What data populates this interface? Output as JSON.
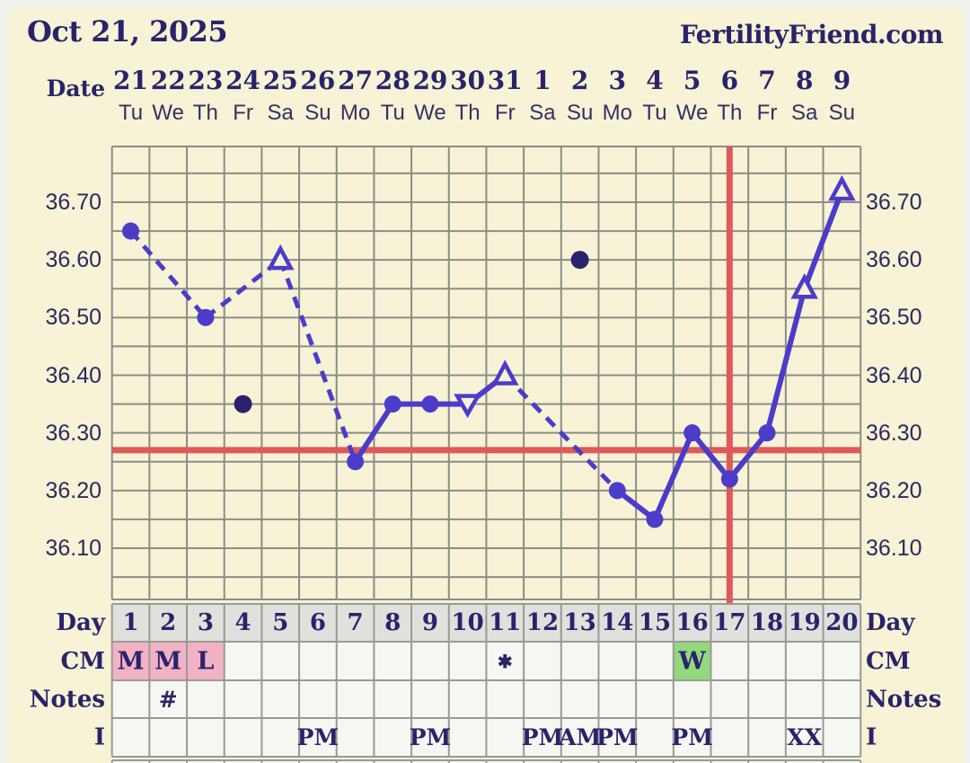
{
  "page": {
    "title_date": "Oct 21, 2025",
    "brand": "FertilityFriend.com"
  },
  "header": {
    "date_label": "Date",
    "dates": [
      "21",
      "22",
      "23",
      "24",
      "25",
      "26",
      "27",
      "28",
      "29",
      "30",
      "31",
      "1",
      "2",
      "3",
      "4",
      "5",
      "6",
      "7",
      "8",
      "9"
    ],
    "weekdays": [
      "Tu",
      "We",
      "Th",
      "Fr",
      "Sa",
      "Su",
      "Mo",
      "Tu",
      "We",
      "Th",
      "Fr",
      "Sa",
      "Su",
      "Mo",
      "Tu",
      "We",
      "Th",
      "Fr",
      "Sa",
      "Su"
    ]
  },
  "chart_data": {
    "type": "line",
    "y_ticks": [
      "36.70",
      "36.60",
      "36.50",
      "36.40",
      "36.30",
      "36.20",
      "36.10"
    ],
    "y_range": [
      36.0,
      36.8
    ],
    "days": 20,
    "points": [
      {
        "day": 1,
        "temp": 36.65,
        "marker": "circle"
      },
      {
        "day": 3,
        "temp": 36.5,
        "marker": "circle"
      },
      {
        "day": 4,
        "temp": 36.35,
        "marker": "discarded-dot"
      },
      {
        "day": 5,
        "temp": 36.6,
        "marker": "triangle-up"
      },
      {
        "day": 7,
        "temp": 36.25,
        "marker": "circle"
      },
      {
        "day": 8,
        "temp": 36.35,
        "marker": "circle"
      },
      {
        "day": 9,
        "temp": 36.35,
        "marker": "circle"
      },
      {
        "day": 10,
        "temp": 36.35,
        "marker": "triangle-down"
      },
      {
        "day": 11,
        "temp": 36.4,
        "marker": "triangle-up"
      },
      {
        "day": 13,
        "temp": 36.6,
        "marker": "discarded-dot"
      },
      {
        "day": 14,
        "temp": 36.2,
        "marker": "circle"
      },
      {
        "day": 15,
        "temp": 36.15,
        "marker": "circle"
      },
      {
        "day": 16,
        "temp": 36.3,
        "marker": "circle"
      },
      {
        "day": 17,
        "temp": 36.22,
        "marker": "circle"
      },
      {
        "day": 18,
        "temp": 36.3,
        "marker": "circle"
      },
      {
        "day": 19,
        "temp": 36.55,
        "marker": "triangle-up"
      },
      {
        "day": 20,
        "temp": 36.72,
        "marker": "triangle-up"
      }
    ],
    "coverline_temp": 36.27,
    "ovulation_line_day": 17,
    "colors": {
      "line": "#4b3cc9",
      "discarded_dot": "#29226d",
      "crosshair_red": "#dd5a5a",
      "grid": "#8c8c86",
      "background": "#f8f2d6"
    }
  },
  "table": {
    "row_labels": [
      "Day",
      "CM",
      "Notes",
      "I"
    ],
    "days": [
      "1",
      "2",
      "3",
      "4",
      "5",
      "6",
      "7",
      "8",
      "9",
      "10",
      "11",
      "12",
      "13",
      "14",
      "15",
      "16",
      "17",
      "18",
      "19",
      "20"
    ],
    "cm": [
      {
        "day": 1,
        "value": "M",
        "bg": "pink"
      },
      {
        "day": 2,
        "value": "M",
        "bg": "pink"
      },
      {
        "day": 3,
        "value": "L",
        "bg": "pink"
      },
      {
        "day": 11,
        "value": "✱",
        "bg": null
      },
      {
        "day": 16,
        "value": "W",
        "bg": "green"
      }
    ],
    "notes": [
      {
        "day": 2,
        "value": "#"
      }
    ],
    "intercourse": [
      {
        "day": 6,
        "value": "PM"
      },
      {
        "day": 9,
        "value": "PM"
      },
      {
        "day": 12,
        "value": "PM"
      },
      {
        "day": 13,
        "value": "AM"
      },
      {
        "day": 14,
        "value": "PM"
      },
      {
        "day": 16,
        "value": "PM"
      },
      {
        "day": 19,
        "value": "XX"
      }
    ],
    "colors": {
      "header_bg": "#e0e0dd",
      "cell_bg": "#f6f6f2",
      "pink": "#f2b2c4",
      "green": "#92d87d",
      "border": "#9a9a94"
    }
  }
}
